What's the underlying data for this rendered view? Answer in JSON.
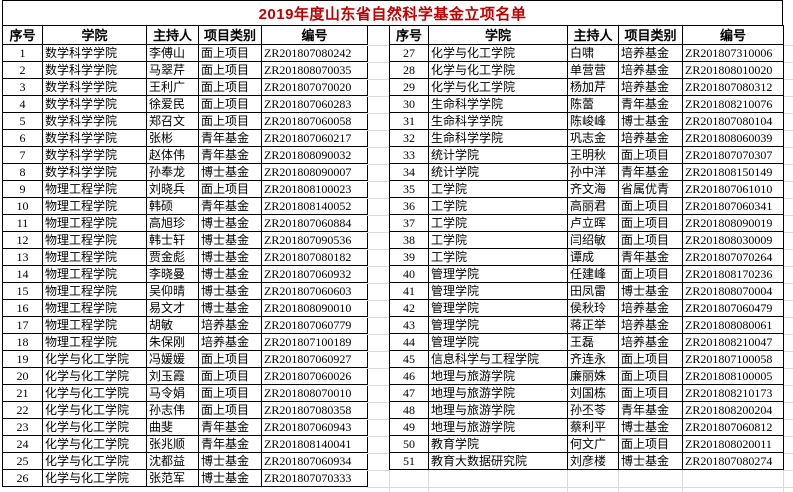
{
  "title": "2019年度山东省自然科学基金立项名单",
  "colors": {
    "title_text": "#c00000",
    "border": "#000000",
    "gridline": "#d9d9d9",
    "body_text": "#000000",
    "background": "#ffffff"
  },
  "columns": [
    "序号",
    "学院",
    "主持人",
    "项目类别",
    "编号"
  ],
  "tables": [
    {
      "name": "left",
      "rows": [
        [
          "1",
          "数学科学学院",
          "李傅山",
          "面上项目",
          "ZR201807080242"
        ],
        [
          "2",
          "数学科学学院",
          "马翠芹",
          "面上项目",
          "ZR201808070035"
        ],
        [
          "3",
          "数学科学学院",
          "王利广",
          "面上项目",
          "ZR201807070020"
        ],
        [
          "4",
          "数学科学学院",
          "徐爱民",
          "面上项目",
          "ZR201807060283"
        ],
        [
          "5",
          "数学科学学院",
          "郑召文",
          "面上项目",
          "ZR201807060058"
        ],
        [
          "6",
          "数学科学学院",
          "张彬",
          "青年基金",
          "ZR201807060217"
        ],
        [
          "7",
          "数学科学学院",
          "赵体伟",
          "青年基金",
          "ZR201808090032"
        ],
        [
          "8",
          "数学科学学院",
          "孙奉龙",
          "博士基金",
          "ZR201808090007"
        ],
        [
          "9",
          "物理工程学院",
          "刘晓兵",
          "面上项目",
          "ZR201808100023"
        ],
        [
          "10",
          "物理工程学院",
          "韩硕",
          "青年基金",
          "ZR201808140052"
        ],
        [
          "11",
          "物理工程学院",
          "高旭珍",
          "博士基金",
          "ZR201807060884"
        ],
        [
          "12",
          "物理工程学院",
          "韩士轩",
          "博士基金",
          "ZR201807090536"
        ],
        [
          "13",
          "物理工程学院",
          "贾金彪",
          "博士基金",
          "ZR201807080182"
        ],
        [
          "14",
          "物理工程学院",
          "李晓曼",
          "博士基金",
          "ZR201807060932"
        ],
        [
          "15",
          "物理工程学院",
          "吴仰晴",
          "博士基金",
          "ZR201807060603"
        ],
        [
          "16",
          "物理工程学院",
          "易文才",
          "博士基金",
          "ZR201808090010"
        ],
        [
          "17",
          "物理工程学院",
          "胡敏",
          "培养基金",
          "ZR201807060779"
        ],
        [
          "18",
          "物理工程学院",
          "朱保刚",
          "培养基金",
          "ZR201807100189"
        ],
        [
          "19",
          "化学与化工学院",
          "冯媛媛",
          "面上项目",
          "ZR201807060927"
        ],
        [
          "20",
          "化学与化工学院",
          "刘玉霞",
          "面上项目",
          "ZR201807060026"
        ],
        [
          "21",
          "化学与化工学院",
          "马令娟",
          "面上项目",
          "ZR201808070010"
        ],
        [
          "22",
          "化学与化工学院",
          "孙志伟",
          "面上项目",
          "ZR201807080358"
        ],
        [
          "23",
          "化学与化工学院",
          "曲斐",
          "青年基金",
          "ZR201807060943"
        ],
        [
          "24",
          "化学与化工学院",
          "张兆顺",
          "青年基金",
          "ZR201808140041"
        ],
        [
          "25",
          "化学与化工学院",
          "沈都益",
          "博士基金",
          "ZR201807060934"
        ],
        [
          "26",
          "化学与化工学院",
          "张范军",
          "博士基金",
          "ZR201807070333"
        ]
      ]
    },
    {
      "name": "right",
      "rows": [
        [
          "27",
          "化学与化工学院",
          "白啸",
          "培养基金",
          "ZR201807310006"
        ],
        [
          "28",
          "化学与化工学院",
          "单营营",
          "培养基金",
          "ZR201808010020"
        ],
        [
          "29",
          "化学与化工学院",
          "杨加芹",
          "培养基金",
          "ZR201807080312"
        ],
        [
          "30",
          "生命科学学院",
          "陈蕾",
          "青年基金",
          "ZR201808210076"
        ],
        [
          "31",
          "生命科学学院",
          "陈峻峰",
          "博士基金",
          "ZR201807080104"
        ],
        [
          "32",
          "生命科学学院",
          "巩志金",
          "培养基金",
          "ZR201808060039"
        ],
        [
          "33",
          "统计学院",
          "王明秋",
          "面上项目",
          "ZR201807070307"
        ],
        [
          "34",
          "统计学院",
          "孙中洋",
          "青年基金",
          "ZR201808150149"
        ],
        [
          "35",
          "工学院",
          "齐文海",
          "省属优青",
          "ZR201807061010"
        ],
        [
          "36",
          "工学院",
          "高丽君",
          "面上项目",
          "ZR201807060341"
        ],
        [
          "37",
          "工学院",
          "卢立晖",
          "面上项目",
          "ZR201808090019"
        ],
        [
          "38",
          "工学院",
          "闫绍敏",
          "面上项目",
          "ZR201808030009"
        ],
        [
          "39",
          "工学院",
          "谭成",
          "青年基金",
          "ZR201807070264"
        ],
        [
          "40",
          "管理学院",
          "任建峰",
          "面上项目",
          "ZR201808170236"
        ],
        [
          "41",
          "管理学院",
          "田凤雷",
          "博士基金",
          "ZR201808070004"
        ],
        [
          "42",
          "管理学院",
          "侯秋玲",
          "培养基金",
          "ZR201807060479"
        ],
        [
          "43",
          "管理学院",
          "蒋正举",
          "培养基金",
          "ZR201808080061"
        ],
        [
          "44",
          "管理学院",
          "王磊",
          "培养基金",
          "ZR201808210047"
        ],
        [
          "45",
          "信息科学与工程学院",
          "齐连永",
          "面上项目",
          "ZR201807100058"
        ],
        [
          "46",
          "地理与旅游学院",
          "廉丽姝",
          "面上项目",
          "ZR201808100005"
        ],
        [
          "47",
          "地理与旅游学院",
          "刘国栋",
          "面上项目",
          "ZR201808210173"
        ],
        [
          "48",
          "地理与旅游学院",
          "孙丕苓",
          "青年基金",
          "ZR201808200204"
        ],
        [
          "49",
          "地理与旅游学院",
          "蔡利平",
          "博士基金",
          "ZR201807060812"
        ],
        [
          "50",
          "教育学院",
          "何文广",
          "面上项目",
          "ZR201808020011"
        ],
        [
          "51",
          "教育大数据研究院",
          "刘彦楼",
          "博士基金",
          "ZR201807080274"
        ]
      ]
    }
  ]
}
